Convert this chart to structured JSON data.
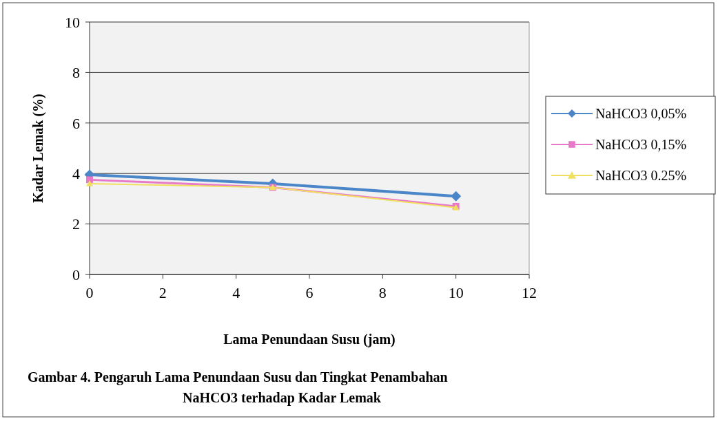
{
  "chart_data": {
    "type": "line",
    "xlabel": "Lama Penundaan Susu (jam)",
    "ylabel": "Kadar Lemak (%)",
    "x": [
      0,
      5,
      10
    ],
    "series": [
      {
        "name": "NaHCO3 0,05%",
        "color": "#4a86c8",
        "values": [
          3.95,
          3.6,
          3.1
        ],
        "marker": "diamond"
      },
      {
        "name": "NaHCO3 0,15%",
        "color": "#e878c8",
        "values": [
          3.75,
          3.45,
          2.7
        ],
        "marker": "square"
      },
      {
        "name": "NaHCO3 0.25%",
        "color": "#f0e060",
        "values": [
          3.6,
          3.45,
          2.65
        ],
        "marker": "triangle"
      }
    ],
    "xlim": [
      0,
      12
    ],
    "xticks": [
      0,
      2,
      4,
      6,
      8,
      10,
      12
    ],
    "ylim": [
      0,
      10
    ],
    "yticks": [
      0,
      2,
      4,
      6,
      8,
      10
    ],
    "grid": "y",
    "legend": "right",
    "line_style": "solid",
    "annotations": [
      "Gambar  4.    Pengaruh Lama Penundaan Susu dan Tingkat Penambahan NaHCO3 terhadap Kadar Lemak"
    ]
  }
}
